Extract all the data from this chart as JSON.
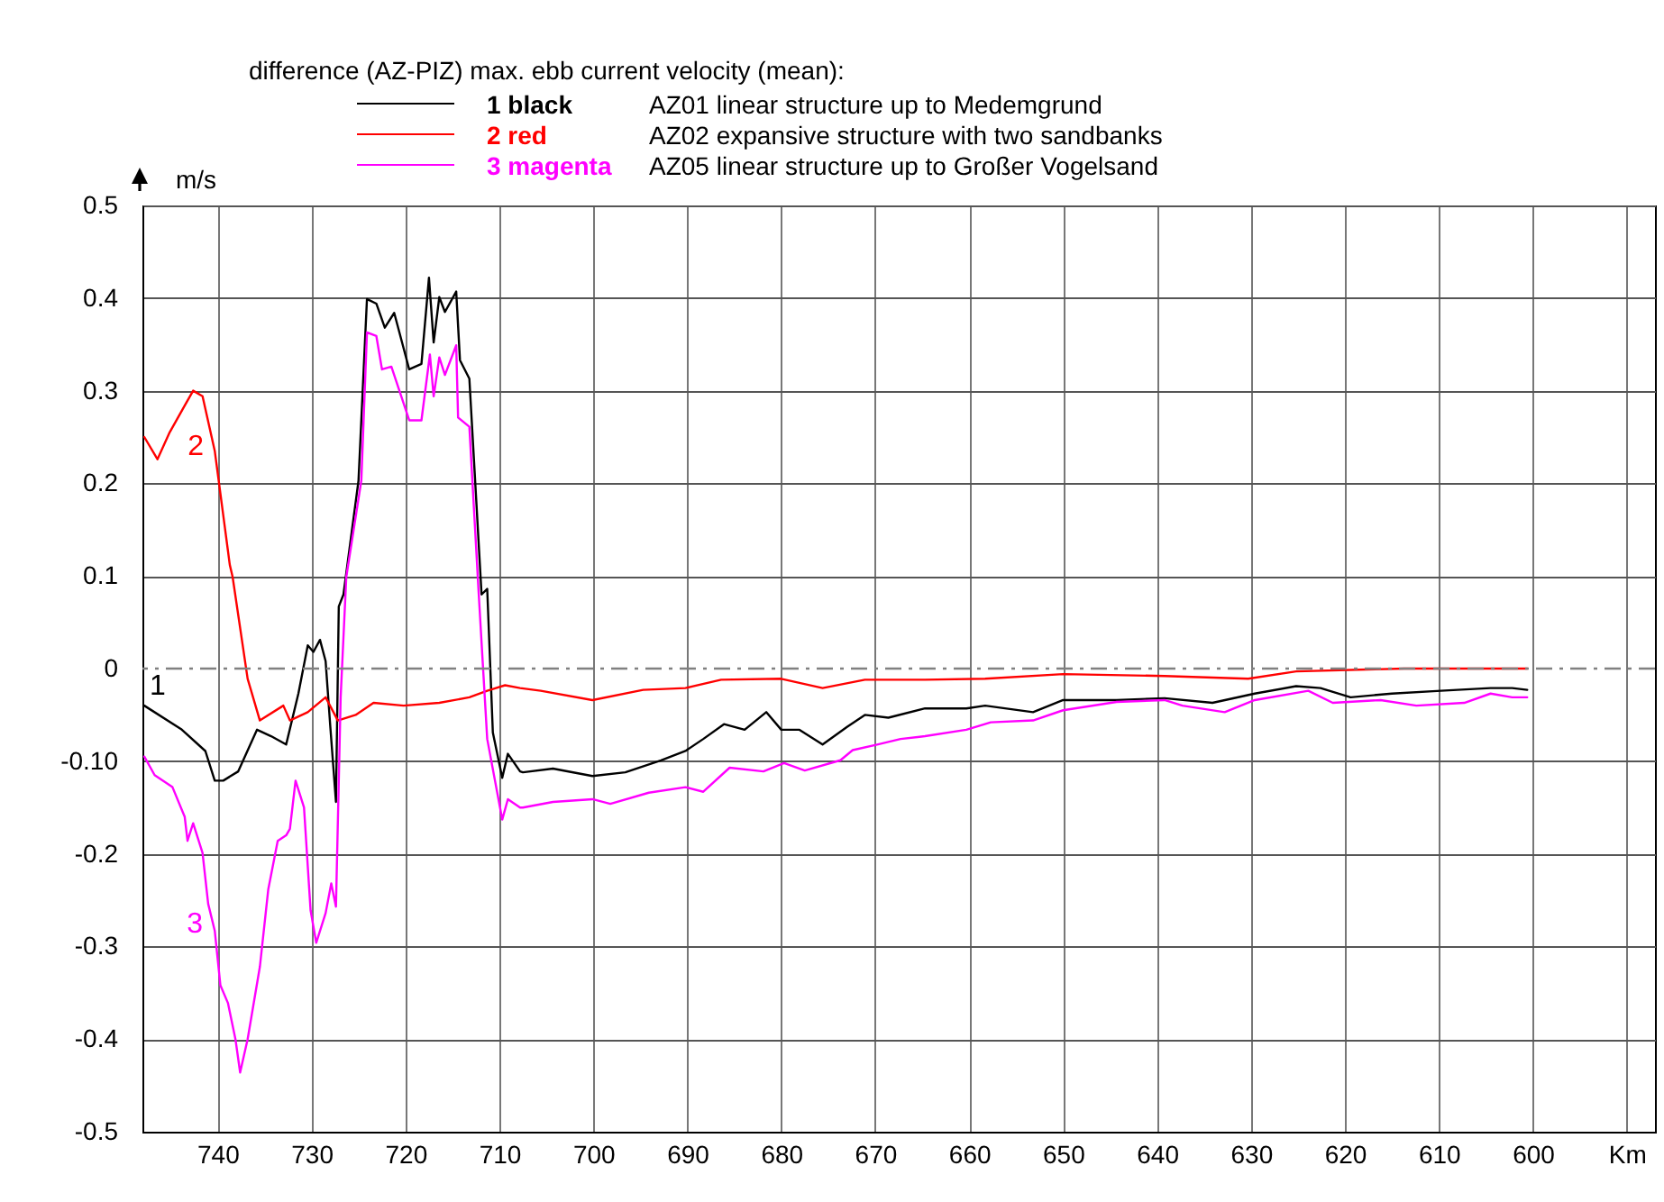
{
  "chart_data": {
    "type": "line",
    "legend_title": "difference (AZ-PIZ) max. ebb current velocity (mean):",
    "ylabel": "m/s",
    "annotations": [
      "AZ01 linear structure up to Medemgrund",
      "AZ02 expansive structure with two sandbanks",
      "AZ05 linear structure up to Großer Vogelsand",
      {
        "text": "1",
        "x": 747.8,
        "y": -0.04
      },
      {
        "text": "2",
        "x": 740.9,
        "y": 0.262
      },
      {
        "text": "3",
        "x": 741.0,
        "y": -0.254
      }
    ],
    "xlim": [
      748,
      587
    ],
    "xticks": [
      740,
      730,
      720,
      710,
      700,
      690,
      680,
      670,
      660,
      650,
      640,
      630,
      620,
      610,
      600,
      {
        "value": 590,
        "label": "Km"
      }
    ],
    "ylim": [
      -0.5,
      0.5
    ],
    "yticks": [
      0.5,
      0.4,
      0.3,
      0.2,
      0.1,
      0,
      {
        "value": -0.1,
        "label": "-0.10"
      },
      -0.2,
      -0.3,
      -0.4,
      -0.5
    ],
    "grid": true,
    "legend": "top",
    "marker": "none",
    "line_style": "solid",
    "ref_lines": [
      {
        "axis": "y",
        "value": 0,
        "color": "#808080",
        "line_style": "dashed"
      }
    ],
    "series": [
      {
        "name": "1 black",
        "color": "#000000",
        "x": [
          747.8,
          743.8,
          741.3,
          740.3,
          739.4,
          737.8,
          735.8,
          734.3,
          732.7,
          731.4,
          730.4,
          729.8,
          729.1,
          728.5,
          728.0,
          727.4,
          727.1,
          726.6,
          725.0,
          724.1,
          723.1,
          722.2,
          721.2,
          719.6,
          718.3,
          717.5,
          717.0,
          716.4,
          715.8,
          714.6,
          714.2,
          713.2,
          711.9,
          711.3,
          710.7,
          709.7,
          709.1,
          707.8,
          707.5,
          704.3,
          700.1,
          696.6,
          692.8,
          690.2,
          688.3,
          686.1,
          683.9,
          681.6,
          680.0,
          678.1,
          675.6,
          673.0,
          671.1,
          668.6,
          664.7,
          660.3,
          658.3,
          653.2,
          650.0,
          644.3,
          639.2,
          634.1,
          629.6,
          625.2,
          622.6,
          619.4,
          615.0,
          609.8,
          604.5,
          602.2,
          600.6
        ],
        "values": [
          -0.04,
          -0.066,
          -0.089,
          -0.121,
          -0.121,
          -0.111,
          -0.066,
          -0.073,
          -0.082,
          -0.027,
          0.025,
          0.018,
          0.031,
          0.008,
          -0.063,
          -0.144,
          0.067,
          0.08,
          0.203,
          0.399,
          0.394,
          0.368,
          0.384,
          0.323,
          0.329,
          0.422,
          0.352,
          0.401,
          0.385,
          0.407,
          0.333,
          0.313,
          0.08,
          0.086,
          -0.069,
          -0.118,
          -0.092,
          -0.111,
          -0.112,
          -0.108,
          -0.116,
          -0.112,
          -0.099,
          -0.089,
          -0.076,
          -0.06,
          -0.066,
          -0.047,
          -0.066,
          -0.066,
          -0.082,
          -0.063,
          -0.05,
          -0.053,
          -0.043,
          -0.043,
          -0.04,
          -0.047,
          -0.034,
          -0.034,
          -0.032,
          -0.037,
          -0.027,
          -0.019,
          -0.021,
          -0.031,
          -0.027,
          -0.024,
          -0.021,
          -0.021,
          -0.023
        ]
      },
      {
        "name": "2 red",
        "color": "#ff0000",
        "x": [
          747.8,
          746.4,
          745.1,
          743.5,
          742.6,
          741.6,
          740.3,
          738.7,
          738.4,
          736.8,
          735.5,
          733.0,
          732.3,
          730.4,
          728.5,
          727.2,
          725.3,
          723.4,
          720.2,
          716.4,
          713.2,
          711.3,
          709.4,
          707.8,
          705.6,
          700.1,
          694.7,
          690.2,
          686.4,
          680.0,
          675.6,
          671.1,
          664.7,
          658.3,
          650.0,
          639.2,
          630.3,
          625.2,
          613.7,
          600.6
        ],
        "values": [
          0.25,
          0.226,
          0.255,
          0.284,
          0.3,
          0.294,
          0.235,
          0.112,
          0.099,
          -0.011,
          -0.056,
          -0.04,
          -0.056,
          -0.047,
          -0.031,
          -0.056,
          -0.05,
          -0.037,
          -0.04,
          -0.037,
          -0.031,
          -0.024,
          -0.018,
          -0.021,
          -0.024,
          -0.034,
          -0.023,
          -0.021,
          -0.012,
          -0.011,
          -0.021,
          -0.012,
          -0.012,
          -0.011,
          -0.006,
          -0.008,
          -0.011,
          -0.003,
          0,
          0
        ]
      },
      {
        "name": "3 magenta",
        "color": "#ff00ff",
        "x": [
          747.8,
          746.7,
          744.8,
          743.5,
          743.2,
          742.6,
          741.6,
          741.0,
          740.3,
          739.7,
          738.9,
          738.1,
          737.6,
          736.8,
          735.5,
          734.6,
          733.6,
          732.7,
          732.3,
          731.7,
          730.8,
          730.1,
          729.5,
          728.5,
          727.9,
          727.4,
          726.9,
          726.3,
          724.7,
          724.1,
          723.1,
          722.5,
          721.5,
          719.6,
          718.3,
          717.4,
          717.0,
          716.4,
          715.8,
          714.6,
          714.4,
          713.2,
          712.2,
          711.3,
          709.7,
          709.1,
          707.8,
          707.5,
          704.3,
          700.1,
          698.2,
          694.1,
          690.2,
          688.3,
          685.5,
          681.9,
          679.7,
          677.5,
          673.7,
          672.4,
          669.8,
          667.3,
          664.7,
          660.3,
          657.7,
          653.2,
          650.0,
          644.3,
          639.2,
          637.3,
          632.8,
          629.6,
          623.9,
          621.3,
          616.2,
          612.4,
          607.3,
          604.5,
          602.2,
          600.6
        ],
        "values": [
          -0.095,
          -0.115,
          -0.128,
          -0.16,
          -0.186,
          -0.167,
          -0.199,
          -0.254,
          -0.283,
          -0.342,
          -0.361,
          -0.4,
          -0.436,
          -0.4,
          -0.322,
          -0.238,
          -0.186,
          -0.18,
          -0.173,
          -0.121,
          -0.15,
          -0.261,
          -0.296,
          -0.264,
          -0.232,
          -0.257,
          -0.031,
          0.099,
          0.203,
          0.363,
          0.359,
          0.323,
          0.326,
          0.268,
          0.268,
          0.339,
          0.294,
          0.336,
          0.317,
          0.349,
          0.271,
          0.261,
          0.08,
          -0.076,
          -0.163,
          -0.141,
          -0.15,
          -0.15,
          -0.144,
          -0.141,
          -0.146,
          -0.134,
          -0.128,
          -0.133,
          -0.107,
          -0.111,
          -0.102,
          -0.11,
          -0.099,
          -0.088,
          -0.082,
          -0.076,
          -0.073,
          -0.066,
          -0.058,
          -0.056,
          -0.045,
          -0.036,
          -0.034,
          -0.04,
          -0.047,
          -0.034,
          -0.024,
          -0.037,
          -0.034,
          -0.04,
          -0.037,
          -0.027,
          -0.031,
          -0.031
        ]
      }
    ]
  }
}
